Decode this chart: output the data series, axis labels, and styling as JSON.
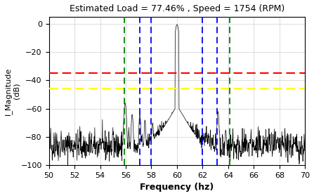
{
  "title": "Estimated Load = 77.46% , Speed = 1754 (RPM)",
  "xlabel": "Frequency (hz)",
  "ylabel": "I_Magnitude\n(dB)",
  "xlim": [
    50,
    70
  ],
  "ylim": [
    -100,
    5
  ],
  "yticks": [
    0,
    -20,
    -40,
    -60,
    -80,
    -100
  ],
  "xticks": [
    50,
    52,
    54,
    56,
    58,
    60,
    62,
    64,
    66,
    68,
    70
  ],
  "vlines_green": [
    55.9,
    64.1
  ],
  "vlines_blue": [
    57.1,
    58.0,
    62.0,
    63.1
  ],
  "hline_red": -35.0,
  "hline_yellow": -45.5,
  "fundamental_freq": 60.0,
  "noise_floor_mean": -87,
  "noise_floor_std": 5,
  "background_color": "#ffffff",
  "grid_color": "#d0d0d0"
}
